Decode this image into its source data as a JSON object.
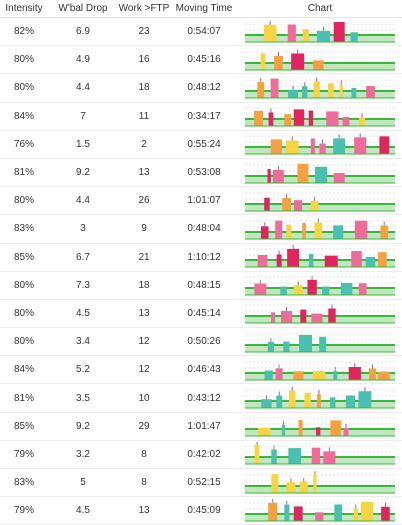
{
  "columns": {
    "intensity": "Intensity",
    "wbal_drop": "W'bal Drop",
    "work_ftp": "Work >FTP",
    "moving_time": "Moving Time",
    "chart": "Chart"
  },
  "rows": [
    {
      "intensity": "82%",
      "wbal_drop": "6.9",
      "work_ftp": "23",
      "moving_time": "0:54:07",
      "pattern": 0
    },
    {
      "intensity": "80%",
      "wbal_drop": "4.9",
      "work_ftp": "16",
      "moving_time": "0:45:16",
      "pattern": 1
    },
    {
      "intensity": "80%",
      "wbal_drop": "4.4",
      "work_ftp": "18",
      "moving_time": "0:48:12",
      "pattern": 2
    },
    {
      "intensity": "84%",
      "wbal_drop": "7",
      "work_ftp": "11",
      "moving_time": "0:34:17",
      "pattern": 3
    },
    {
      "intensity": "76%",
      "wbal_drop": "1.5",
      "work_ftp": "2",
      "moving_time": "0:55:24",
      "pattern": 4
    },
    {
      "intensity": "81%",
      "wbal_drop": "9.2",
      "work_ftp": "13",
      "moving_time": "0:53:08",
      "pattern": 5
    },
    {
      "intensity": "80%",
      "wbal_drop": "4.4",
      "work_ftp": "26",
      "moving_time": "1:01:07",
      "pattern": 6
    },
    {
      "intensity": "83%",
      "wbal_drop": "3",
      "work_ftp": "9",
      "moving_time": "0:48:04",
      "pattern": 7
    },
    {
      "intensity": "85%",
      "wbal_drop": "6.7",
      "work_ftp": "21",
      "moving_time": "1:10:12",
      "pattern": 8
    },
    {
      "intensity": "80%",
      "wbal_drop": "7.3",
      "work_ftp": "18",
      "moving_time": "0:48:15",
      "pattern": 9
    },
    {
      "intensity": "80%",
      "wbal_drop": "4.5",
      "work_ftp": "13",
      "moving_time": "0:45:14",
      "pattern": 10
    },
    {
      "intensity": "80%",
      "wbal_drop": "3.4",
      "work_ftp": "12",
      "moving_time": "0:50:26",
      "pattern": 11
    },
    {
      "intensity": "84%",
      "wbal_drop": "5.2",
      "work_ftp": "12",
      "moving_time": "0:46:43",
      "pattern": 12
    },
    {
      "intensity": "81%",
      "wbal_drop": "3.5",
      "work_ftp": "10",
      "moving_time": "0:43:12",
      "pattern": 13
    },
    {
      "intensity": "85%",
      "wbal_drop": "9.2",
      "work_ftp": "29",
      "moving_time": "1:01:47",
      "pattern": 14
    },
    {
      "intensity": "79%",
      "wbal_drop": "3.2",
      "work_ftp": "8",
      "moving_time": "0:42:02",
      "pattern": 15
    },
    {
      "intensity": "83%",
      "wbal_drop": "5",
      "work_ftp": "8",
      "moving_time": "0:52:15",
      "pattern": 16
    },
    {
      "intensity": "79%",
      "wbal_drop": "4.5",
      "work_ftp": "13",
      "moving_time": "0:45:09",
      "pattern": 17
    }
  ],
  "colors": {
    "green": "#3bb53b",
    "green_light": "#bfe8bf",
    "teal": "#4bbfb0",
    "yellow": "#f7d442",
    "orange": "#f7a03f",
    "red": "#e0245e",
    "pink": "#f06a9a",
    "purple": "#8a5fd1",
    "gray": "#888888",
    "grid": "#c8c8c8"
  }
}
